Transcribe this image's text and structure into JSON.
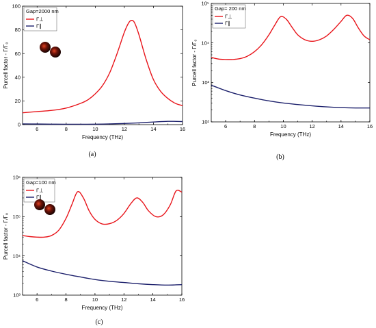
{
  "colors": {
    "perp": "#e8141a",
    "para": "#1b1f6b"
  },
  "icon": "nanoparticle-dimer-icon",
  "chart_data": [
    {
      "id": "a",
      "type": "line",
      "caption": "(a)",
      "legend_title": "Gap=2000 nm",
      "xlabel": "Frequency (THz)",
      "ylabel": "Purcell factor - Γ/Γ₀",
      "xlim": [
        5,
        16
      ],
      "ylim": [
        0,
        100
      ],
      "yscale": "linear",
      "xticks": [
        6,
        8,
        10,
        12,
        14,
        16
      ],
      "yticks": [
        0,
        20,
        40,
        60,
        80,
        100
      ],
      "ytick_labels": [
        "0",
        "20",
        "40",
        "60",
        "80",
        "100"
      ],
      "series": [
        {
          "name": "Γ⊥",
          "color_key": "perp",
          "x": [
            5,
            6,
            7,
            8,
            9,
            9.5,
            10,
            10.5,
            11,
            11.5,
            12,
            12.3,
            12.5,
            12.7,
            13,
            13.5,
            14,
            14.5,
            15,
            15.5,
            16
          ],
          "y": [
            10,
            11,
            12,
            14,
            18,
            21,
            26,
            33,
            44,
            60,
            78,
            86,
            88,
            86,
            76,
            55,
            38,
            28,
            22,
            18,
            16
          ]
        },
        {
          "name": "Γ∥",
          "color_key": "para",
          "x": [
            5,
            6,
            7,
            8,
            9,
            10,
            11,
            12,
            13,
            14,
            15,
            16
          ],
          "y": [
            0.6,
            0.5,
            0.4,
            0.3,
            0.3,
            0.4,
            0.6,
            1.0,
            1.5,
            2.2,
            2.8,
            2.6
          ]
        }
      ]
    },
    {
      "id": "b",
      "type": "line",
      "caption": "(b)",
      "legend_title": "Gap= 200 nm",
      "xlabel": "Frequency (THz)",
      "ylabel": "Purcell factor - Γ/Γ₀",
      "xlim": [
        5,
        16
      ],
      "ylim": [
        100,
        100000
      ],
      "yscale": "log",
      "xticks": [
        6,
        8,
        10,
        12,
        14,
        16
      ],
      "yticks": [
        100,
        1000,
        10000,
        100000
      ],
      "ytick_labels": [
        "10²",
        "10³",
        "10⁴",
        "10⁵"
      ],
      "series": [
        {
          "name": "Γ⊥",
          "color_key": "perp",
          "x": [
            5,
            5.5,
            6,
            6.5,
            7,
            7.5,
            8,
            8.5,
            9,
            9.4,
            9.8,
            10.2,
            10.6,
            11,
            11.5,
            12,
            12.5,
            13,
            13.5,
            14,
            14.4,
            14.8,
            15.2,
            15.6,
            16
          ],
          "y": [
            4300,
            3900,
            3800,
            3800,
            4000,
            4600,
            6000,
            9000,
            16000,
            28000,
            46000,
            40000,
            25000,
            16000,
            12000,
            11000,
            12000,
            15000,
            22000,
            35000,
            50000,
            42000,
            24000,
            15000,
            12000
          ]
        },
        {
          "name": "Γ∥",
          "color_key": "para",
          "x": [
            5,
            6,
            7,
            8,
            9,
            10,
            11,
            12,
            13,
            14,
            15,
            16
          ],
          "y": [
            850,
            620,
            480,
            400,
            340,
            300,
            275,
            255,
            240,
            230,
            225,
            225
          ]
        }
      ]
    },
    {
      "id": "c",
      "type": "line",
      "caption": "(c)",
      "legend_title": "Gap=100 nm",
      "xlabel": "Frequency (THz)",
      "ylabel": "Purcell factor - Γ/Γ₀",
      "xlim": [
        5,
        16
      ],
      "ylim": [
        1000,
        1000000
      ],
      "yscale": "log",
      "xticks": [
        6,
        8,
        10,
        12,
        14,
        16
      ],
      "yticks": [
        1000,
        10000,
        100000,
        1000000
      ],
      "ytick_labels": [
        "10³",
        "10⁴",
        "10⁵",
        "10⁶"
      ],
      "series": [
        {
          "name": "Γ⊥",
          "color_key": "perp",
          "x": [
            5,
            5.5,
            6,
            6.5,
            7,
            7.5,
            8,
            8.4,
            8.8,
            9.2,
            9.6,
            10,
            10.5,
            11,
            11.5,
            12,
            12.5,
            12.9,
            13.3,
            13.7,
            14.2,
            14.7,
            15.2,
            15.6,
            16
          ],
          "y": [
            33000,
            31000,
            30000,
            30000,
            33000,
            45000,
            90000,
            200000,
            430000,
            300000,
            140000,
            85000,
            65000,
            66000,
            80000,
            120000,
            220000,
            300000,
            230000,
            140000,
            100000,
            110000,
            200000,
            450000,
            420000
          ]
        },
        {
          "name": "Γ∥",
          "color_key": "para",
          "x": [
            5,
            6,
            7,
            8,
            9,
            10,
            11,
            12,
            13,
            14,
            15,
            16
          ],
          "y": [
            7500,
            5200,
            4100,
            3400,
            2900,
            2500,
            2250,
            2100,
            1950,
            1850,
            1800,
            1850
          ]
        }
      ]
    }
  ]
}
